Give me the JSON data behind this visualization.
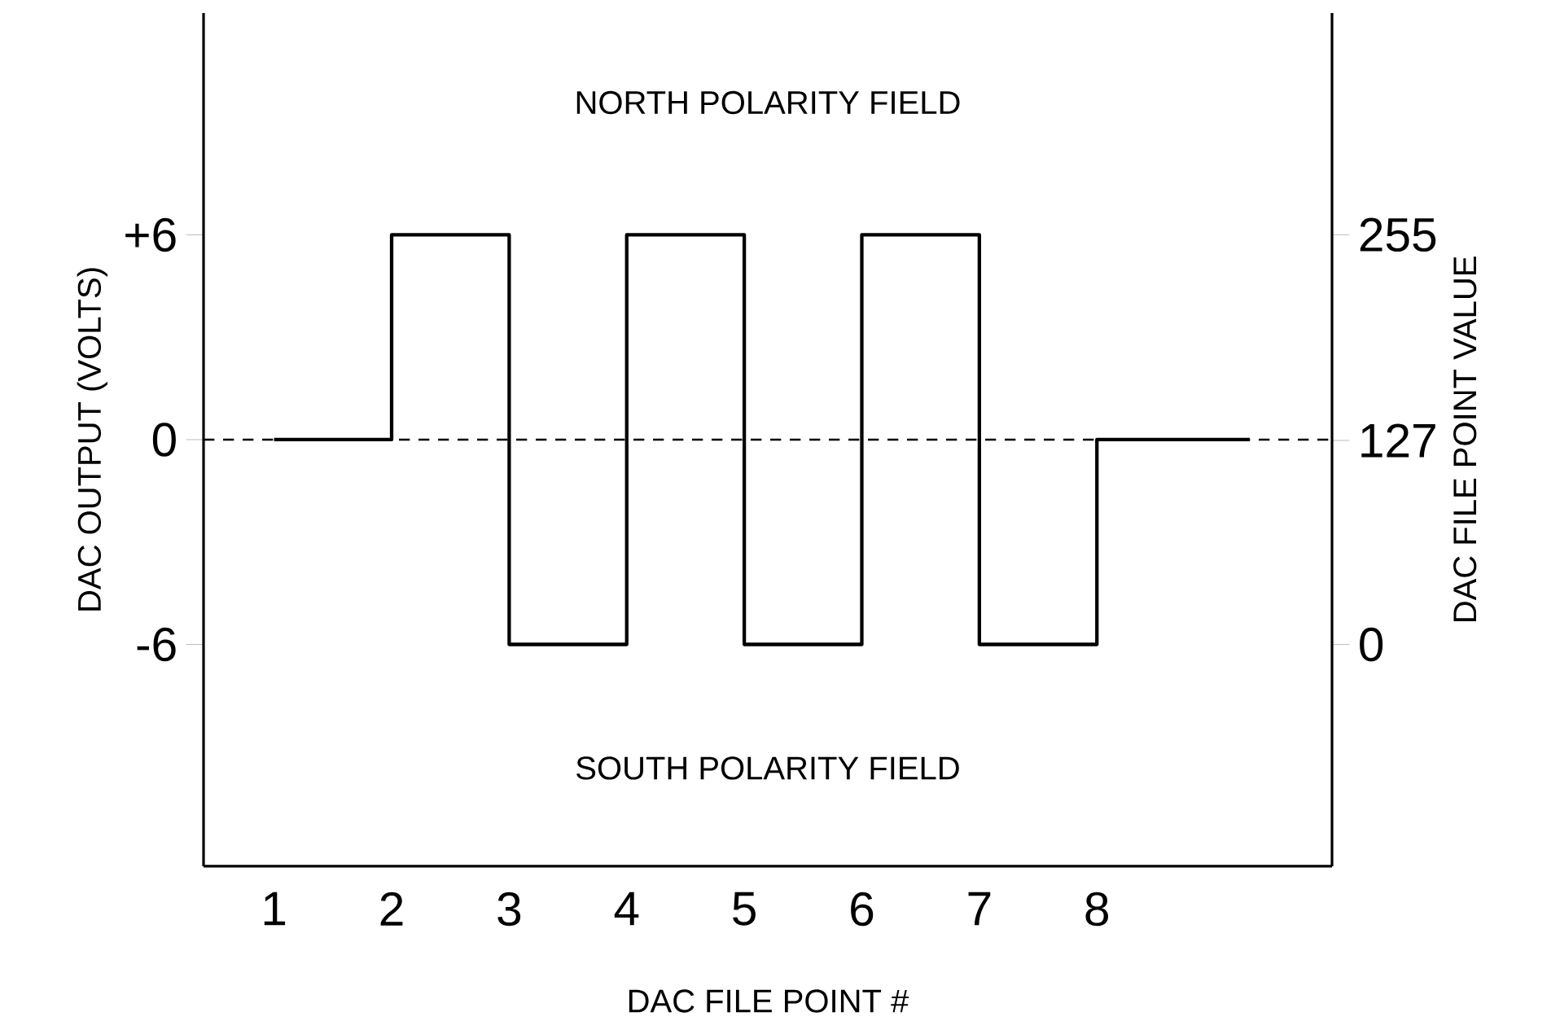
{
  "chart_data": {
    "type": "step",
    "xlabel": "DAC FILE POINT #",
    "ylabel": "DAC OUTPUT (VOLTS)",
    "y2label": "DAC FILE POINT VALUE",
    "annotations": [
      "NORTH POLARITY FIELD",
      "SOUTH POLARITY FIELD"
    ],
    "x": [
      1,
      2,
      3,
      4,
      5,
      6,
      7,
      8,
      9.3
    ],
    "series": [
      {
        "color": "#000000",
        "values": [
          0,
          6,
          -6,
          6,
          -6,
          6,
          -6,
          0,
          0
        ]
      }
    ],
    "xlim": [
      0.4,
      10
    ],
    "xticks": [
      1,
      2,
      3,
      4,
      5,
      6,
      7,
      8
    ],
    "ylim": [
      -12.5,
      12.5
    ],
    "yticks": [
      {
        "value": -6,
        "label": "-6"
      },
      0,
      {
        "value": 6,
        "label": "+6"
      }
    ],
    "y2lim": [
      -138,
      393
    ],
    "y2ticks": [
      0,
      127,
      255
    ],
    "ref_lines": [
      {
        "axis": "y",
        "value": 0,
        "color": "#000000",
        "line_style": "dashed"
      }
    ],
    "grid": false
  }
}
